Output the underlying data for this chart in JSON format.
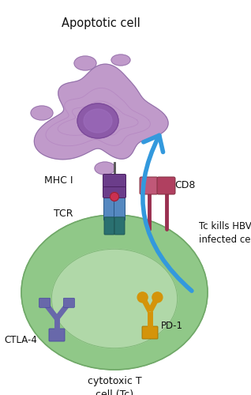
{
  "bg_color": "#ffffff",
  "apoptotic_cell_label": "Apoptotic cell",
  "cytotoxic_label": "cytotoxic T\ncell (Tc)",
  "mhc_label": "MHC I",
  "tcr_label": "TCR",
  "cd8_label": "CD8",
  "ctla4_label": "CTLA-4",
  "pd1_label": "PD-1",
  "arrow_label": "Tc kills HBV\ninfected cell",
  "colors": {
    "apoptotic_outer": "#c09aca",
    "apoptotic_inner": "#b088be",
    "apoptotic_rings": "#a870b8",
    "apoptotic_nucleus": "#8c5aa8",
    "t_cell_outer": "#90c888",
    "t_cell_inner": "#b0d8a8",
    "mhc_purple": "#6b3d8a",
    "tcr_blue_light": "#5588c0",
    "tcr_blue_dark": "#2a5888",
    "tcr_teal": "#2a7070",
    "cd8_pink": "#c05878",
    "cd8_dark": "#9a3050",
    "ctla4_purple": "#6868aa",
    "pd1_orange": "#d4940a",
    "arrow_blue": "#3399dd",
    "stem_color": "#555555"
  }
}
